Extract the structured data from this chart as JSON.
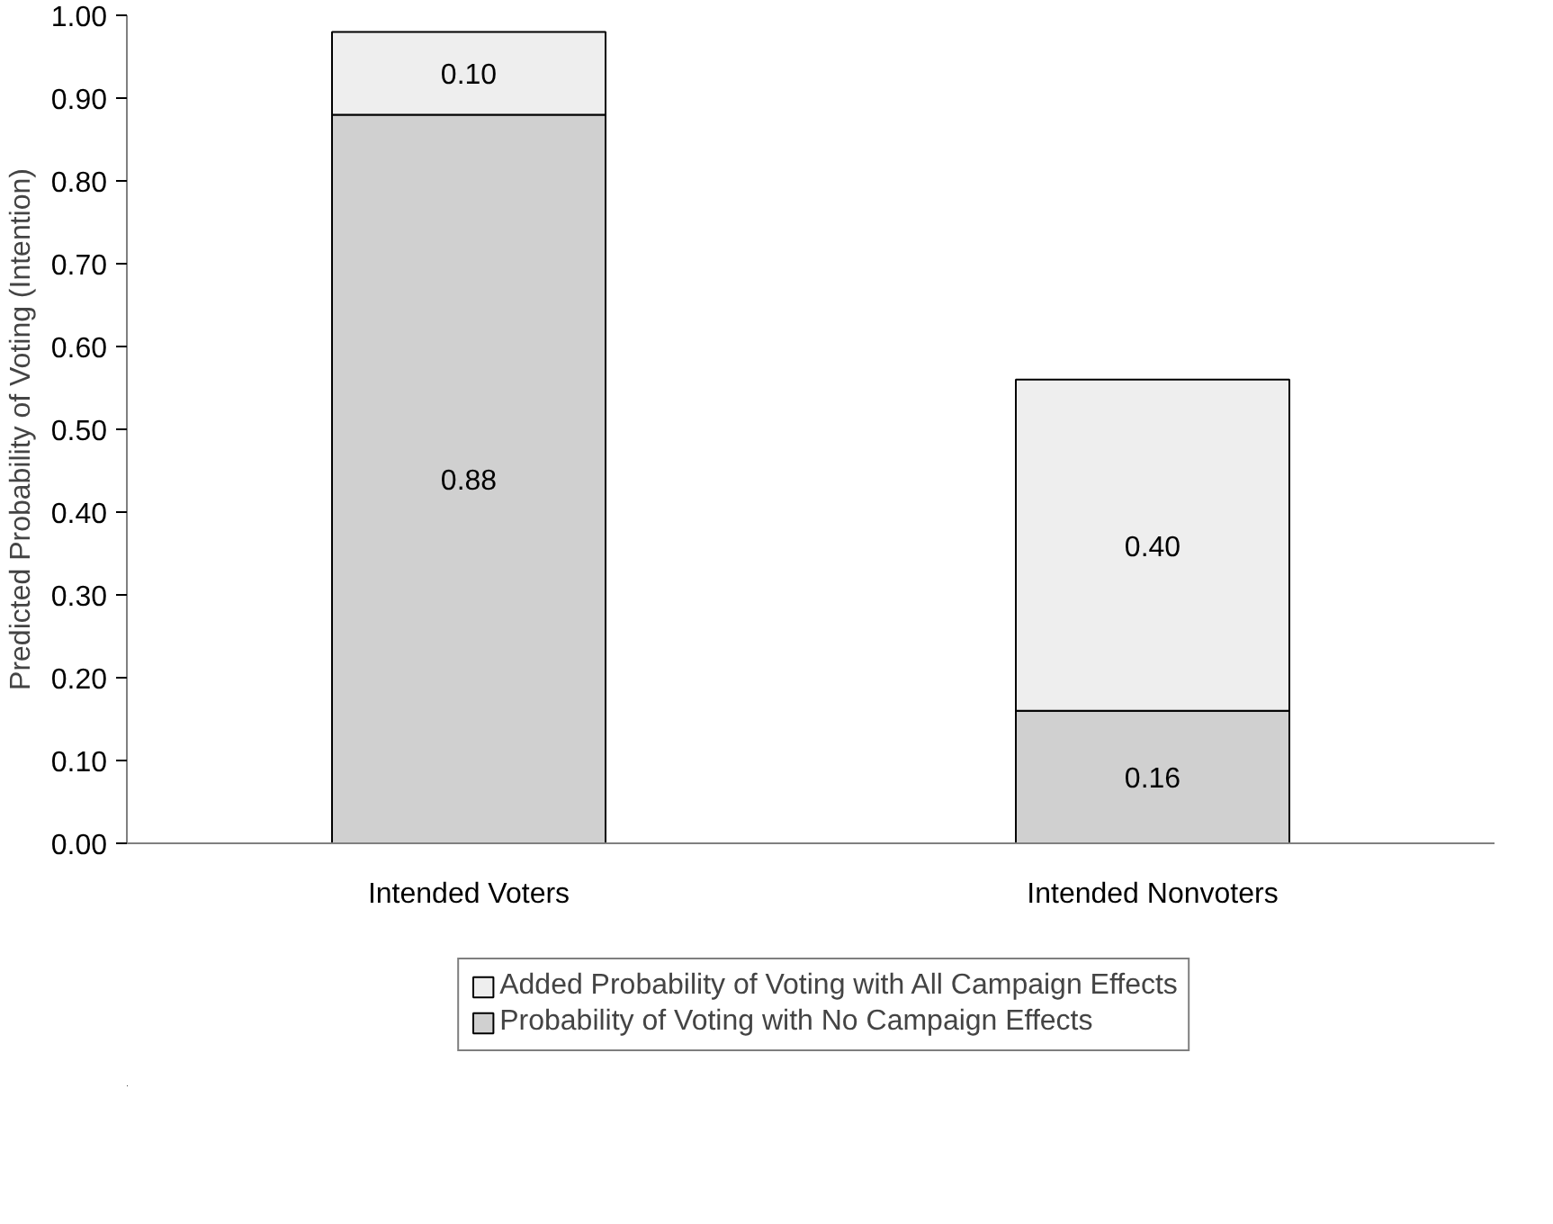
{
  "chart_data": {
    "type": "bar",
    "stacked": true,
    "ylabel": "Predicted Probability of Voting (Intention)",
    "categories": [
      "Intended Voters",
      "Intended Nonvoters"
    ],
    "series": [
      {
        "name": "Probability of Voting with No Campaign Effects",
        "color": "#d0d0d0",
        "values": [
          0.88,
          0.16
        ],
        "value_labels": [
          "0.88",
          "0.16"
        ]
      },
      {
        "name": "Added Probability of Voting with All Campaign Effects",
        "color": "#eeeeee",
        "values": [
          0.1,
          0.4
        ],
        "value_labels": [
          "0.10",
          "0.40"
        ]
      }
    ],
    "ylim": [
      0,
      1
    ],
    "yticks": [
      {
        "value": 0,
        "label": "0.00"
      },
      {
        "value": 0.1,
        "label": "0.10"
      },
      {
        "value": 0.2,
        "label": "0.20"
      },
      {
        "value": 0.3,
        "label": "0.30"
      },
      {
        "value": 0.4,
        "label": "0.40"
      },
      {
        "value": 0.5,
        "label": "0.50"
      },
      {
        "value": 0.6,
        "label": "0.60"
      },
      {
        "value": 0.7,
        "label": "0.70"
      },
      {
        "value": 0.8,
        "label": "0.80"
      },
      {
        "value": 0.9,
        "label": "0.90"
      },
      {
        "value": 1,
        "label": "1.00"
      }
    ],
    "grid": false,
    "legend": "bottom"
  }
}
